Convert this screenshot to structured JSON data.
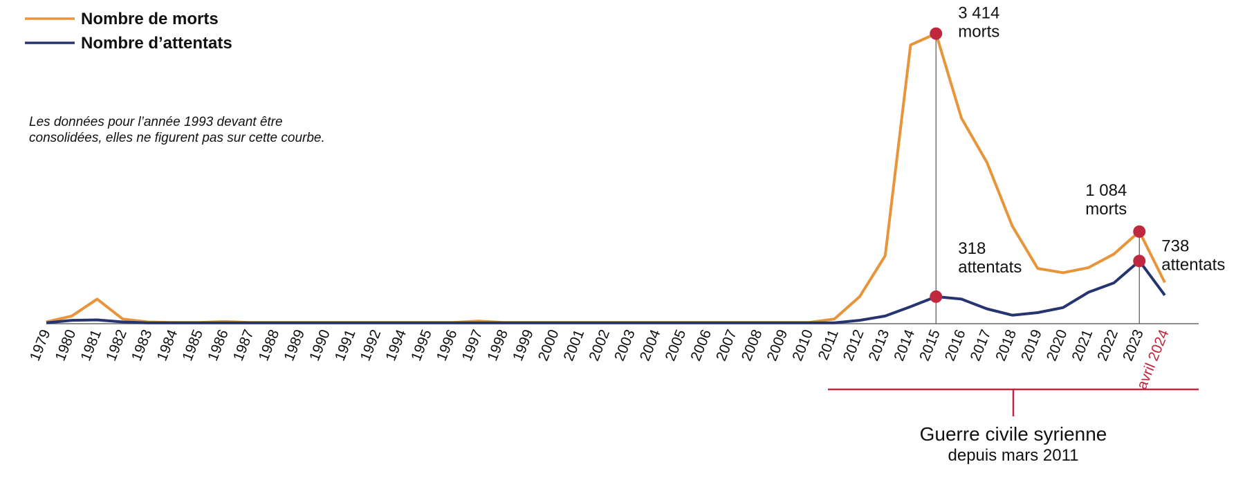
{
  "chart_data": {
    "type": "line",
    "note": "Les données pour l’année 1993 devant être consolidées, elles ne figurent pas sur cette courbe.",
    "categories": [
      "1979",
      "1980",
      "1981",
      "1982",
      "1983",
      "1984",
      "1985",
      "1986",
      "1987",
      "1988",
      "1989",
      "1990",
      "1991",
      "1992",
      "1994",
      "1995",
      "1996",
      "1997",
      "1998",
      "1999",
      "2000",
      "2001",
      "2002",
      "2003",
      "2004",
      "2005",
      "2006",
      "2007",
      "2008",
      "2009",
      "2010",
      "2011",
      "2012",
      "2013",
      "2014",
      "2015",
      "2016",
      "2017",
      "2018",
      "2019",
      "2020",
      "2021",
      "2022",
      "2023",
      "avril 2024"
    ],
    "series": [
      {
        "name": "Nombre de morts",
        "color": "#e8943a",
        "label_unit": "morts",
        "values": [
          20,
          90,
          290,
          55,
          20,
          15,
          15,
          25,
          15,
          15,
          15,
          15,
          15,
          15,
          15,
          15,
          15,
          30,
          15,
          15,
          15,
          15,
          15,
          15,
          15,
          15,
          15,
          15,
          15,
          15,
          15,
          55,
          320,
          800,
          3280,
          3414,
          2420,
          1900,
          1150,
          650,
          600,
          660,
          820,
          1084,
          485
        ],
        "value_labels": [
          null,
          null,
          null,
          null,
          null,
          null,
          null,
          null,
          null,
          null,
          null,
          null,
          null,
          null,
          null,
          null,
          null,
          null,
          null,
          null,
          null,
          null,
          null,
          null,
          null,
          null,
          null,
          null,
          null,
          null,
          null,
          null,
          null,
          null,
          null,
          "3 414",
          null,
          null,
          null,
          null,
          null,
          null,
          null,
          "1 084",
          null
        ]
      },
      {
        "name": "Nombre d’attentats",
        "color": "#263570",
        "label_unit": "attentats",
        "values": [
          10,
          40,
          45,
          20,
          10,
          10,
          10,
          10,
          10,
          10,
          10,
          10,
          10,
          10,
          10,
          10,
          10,
          10,
          10,
          10,
          10,
          10,
          10,
          10,
          10,
          10,
          10,
          10,
          10,
          10,
          10,
          10,
          40,
          90,
          200,
          318,
          290,
          175,
          100,
          130,
          190,
          370,
          480,
          738,
          335
        ],
        "value_labels": [
          null,
          null,
          null,
          null,
          null,
          null,
          null,
          null,
          null,
          null,
          null,
          null,
          null,
          null,
          null,
          null,
          null,
          null,
          null,
          null,
          null,
          null,
          null,
          null,
          null,
          null,
          null,
          null,
          null,
          null,
          null,
          null,
          null,
          null,
          null,
          "318",
          null,
          null,
          null,
          null,
          null,
          null,
          null,
          "738",
          null
        ]
      }
    ],
    "ylim": [
      0,
      3500
    ],
    "marker_color": "#c0283f",
    "bracket": {
      "title": "Guerre civile syrienne",
      "subtitle": "depuis mars 2011",
      "color": "#c0283f"
    }
  }
}
